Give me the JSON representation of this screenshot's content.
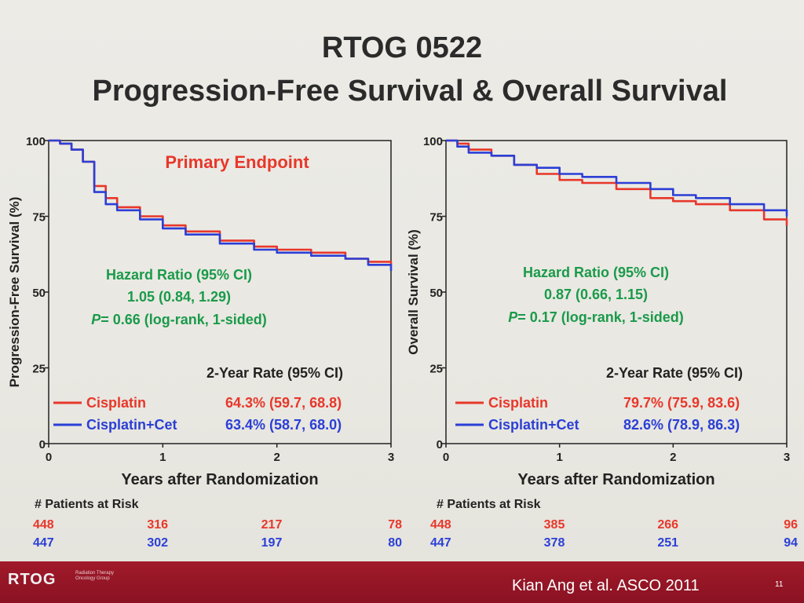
{
  "slide": {
    "title_line1": "RTOG 0522",
    "title_line2": "Progression-Free Survival & Overall Survival",
    "citation": "Kian Ang et al. ASCO 2011",
    "page_number": "11",
    "logo_text": "RTOG",
    "logo_subtext": "Radiation Therapy Oncology Group"
  },
  "colors": {
    "cisplatin": "#e8372a",
    "cisplatin_cet": "#2b3fd6",
    "green": "#1a9a4a",
    "axis": "#222222"
  },
  "chart_data": [
    {
      "type": "line",
      "title": "Primary Endpoint",
      "ylabel": "Progression-Free Survival (%)",
      "xlabel": "Years after Randomization",
      "xlim": [
        0,
        3
      ],
      "ylim": [
        0,
        100
      ],
      "xticks": [
        "0",
        "1",
        "2",
        "3"
      ],
      "yticks": [
        "0",
        "25",
        "50",
        "75",
        "100"
      ],
      "series": [
        {
          "name": "Cisplatin",
          "color": "#e8372a",
          "x": [
            0,
            0.1,
            0.2,
            0.3,
            0.4,
            0.5,
            0.6,
            0.8,
            1.0,
            1.2,
            1.5,
            1.8,
            2.0,
            2.3,
            2.6,
            2.8,
            3.0
          ],
          "y": [
            100,
            99,
            97,
            93,
            85,
            81,
            78,
            75,
            72,
            70,
            67,
            65,
            64,
            63,
            61,
            60,
            59
          ]
        },
        {
          "name": "Cisplatin+Cet",
          "color": "#2b3fd6",
          "x": [
            0,
            0.1,
            0.2,
            0.3,
            0.4,
            0.5,
            0.6,
            0.8,
            1.0,
            1.2,
            1.5,
            1.8,
            2.0,
            2.3,
            2.6,
            2.8,
            3.0
          ],
          "y": [
            100,
            99,
            97,
            93,
            83,
            79,
            77,
            74,
            71,
            69,
            66,
            64,
            63,
            62,
            61,
            59,
            57
          ]
        }
      ],
      "stats": {
        "hr_label": "Hazard Ratio (95% CI)",
        "hr_value": "1.05 (0.84, 1.29)",
        "p_letter": "P",
        "p_value": "= 0.66 (log-rank, 1-sided)"
      },
      "rate_header": "2-Year Rate (95% CI)",
      "legend": [
        {
          "name": "Cisplatin",
          "rate": "64.3% (59.7, 68.8)"
        },
        {
          "name": "Cisplatin+Cet",
          "rate": "63.4% (58.7, 68.0)"
        }
      ],
      "risk_header": "# Patients at Risk",
      "at_risk": [
        [
          "448",
          "316",
          "217",
          "78"
        ],
        [
          "447",
          "302",
          "197",
          "80"
        ]
      ]
    },
    {
      "type": "line",
      "title": "",
      "ylabel": "Overall Survival (%)",
      "xlabel": "Years after Randomization",
      "xlim": [
        0,
        3
      ],
      "ylim": [
        0,
        100
      ],
      "xticks": [
        "0",
        "1",
        "2",
        "3"
      ],
      "yticks": [
        "0",
        "25",
        "50",
        "75",
        "100"
      ],
      "series": [
        {
          "name": "Cisplatin",
          "color": "#e8372a",
          "x": [
            0,
            0.1,
            0.2,
            0.4,
            0.6,
            0.8,
            1.0,
            1.2,
            1.5,
            1.8,
            2.0,
            2.2,
            2.5,
            2.8,
            3.0
          ],
          "y": [
            100,
            99,
            97,
            95,
            92,
            89,
            87,
            86,
            84,
            81,
            80,
            79,
            77,
            74,
            72
          ]
        },
        {
          "name": "Cisplatin+Cet",
          "color": "#2b3fd6",
          "x": [
            0,
            0.1,
            0.2,
            0.4,
            0.6,
            0.8,
            1.0,
            1.2,
            1.5,
            1.8,
            2.0,
            2.2,
            2.5,
            2.8,
            3.0
          ],
          "y": [
            100,
            98,
            96,
            95,
            92,
            91,
            89,
            88,
            86,
            84,
            82,
            81,
            79,
            77,
            75
          ]
        }
      ],
      "stats": {
        "hr_label": "Hazard Ratio (95% CI)",
        "hr_value": "0.87 (0.66, 1.15)",
        "p_letter": "P",
        "p_value": "= 0.17 (log-rank, 1-sided)"
      },
      "rate_header": "2-Year Rate (95% CI)",
      "legend": [
        {
          "name": "Cisplatin",
          "rate": "79.7% (75.9, 83.6)"
        },
        {
          "name": "Cisplatin+Cet",
          "rate": "82.6% (78.9, 86.3)"
        }
      ],
      "risk_header": "# Patients at Risk",
      "at_risk": [
        [
          "448",
          "385",
          "266",
          "96"
        ],
        [
          "447",
          "378",
          "251",
          "94"
        ]
      ]
    }
  ]
}
